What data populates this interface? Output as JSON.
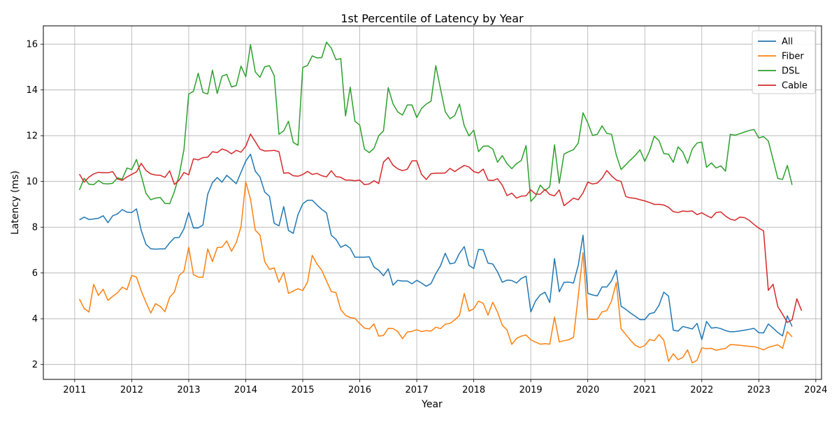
{
  "chart_data": {
    "type": "line",
    "title": "1st Percentile of Latency by Year",
    "xlabel": "Year",
    "ylabel": "Latency (ms)",
    "xlim": [
      2010.45,
      2024.1
    ],
    "ylim": [
      1.35,
      16.8
    ],
    "x_ticks": [
      2011,
      2012,
      2013,
      2014,
      2015,
      2016,
      2017,
      2018,
      2019,
      2020,
      2021,
      2022,
      2023,
      2024
    ],
    "x_tick_labels": [
      "2011",
      "2012",
      "2013",
      "2014",
      "2015",
      "2016",
      "2017",
      "2018",
      "2019",
      "2020",
      "2021",
      "2022",
      "2023",
      "2024"
    ],
    "y_ticks": [
      2,
      4,
      6,
      8,
      10,
      12,
      14,
      16
    ],
    "y_tick_labels": [
      "2",
      "4",
      "6",
      "8",
      "10",
      "12",
      "14",
      "16"
    ],
    "grid": true,
    "legend_position": "top-right",
    "x_start": "2011-02",
    "x_step_months": 1,
    "series": [
      {
        "name": "All",
        "color": "#1f77b4",
        "values": [
          8.32,
          8.44,
          8.34,
          8.36,
          8.39,
          8.5,
          8.2,
          8.5,
          8.58,
          8.77,
          8.66,
          8.64,
          8.8,
          7.86,
          7.25,
          7.06,
          7.04,
          7.05,
          7.05,
          7.32,
          7.54,
          7.55,
          7.93,
          8.64,
          7.97,
          7.97,
          8.1,
          9.44,
          9.95,
          10.17,
          9.97,
          10.27,
          10.09,
          9.9,
          10.4,
          10.89,
          11.19,
          10.45,
          10.2,
          9.54,
          9.35,
          8.17,
          8.06,
          8.9,
          7.86,
          7.73,
          8.55,
          9.02,
          9.18,
          9.18,
          8.97,
          8.78,
          8.63,
          7.65,
          7.47,
          7.12,
          7.23,
          7.08,
          6.69,
          6.69,
          6.69,
          6.71,
          6.26,
          6.12,
          5.88,
          6.18,
          5.47,
          5.68,
          5.65,
          5.65,
          5.53,
          5.68,
          5.56,
          5.42,
          5.54,
          5.97,
          6.32,
          6.86,
          6.4,
          6.44,
          6.86,
          7.15,
          6.33,
          6.2,
          7.03,
          7.01,
          6.43,
          6.39,
          6.05,
          5.59,
          5.69,
          5.67,
          5.56,
          5.76,
          5.86,
          4.3,
          4.77,
          5.04,
          5.16,
          4.71,
          6.63,
          5.18,
          5.59,
          5.6,
          5.56,
          6.34,
          7.65,
          5.11,
          5.04,
          5.0,
          5.39,
          5.39,
          5.66,
          6.12,
          4.55,
          4.41,
          4.25,
          4.11,
          3.96,
          3.96,
          4.22,
          4.27,
          4.59,
          5.16,
          4.99,
          3.5,
          3.46,
          3.66,
          3.61,
          3.55,
          3.8,
          3.09,
          3.88,
          3.59,
          3.62,
          3.57,
          3.48,
          3.43,
          3.44,
          3.47,
          3.5,
          3.54,
          3.58,
          3.39,
          3.38,
          3.77,
          3.59,
          3.4,
          3.25,
          4.13,
          3.66
        ]
      },
      {
        "name": "Fiber",
        "color": "#ff7f0e",
        "values": [
          4.86,
          4.45,
          4.29,
          5.5,
          5.02,
          5.29,
          4.8,
          4.98,
          5.13,
          5.38,
          5.27,
          5.89,
          5.82,
          5.22,
          4.71,
          4.25,
          4.66,
          4.54,
          4.31,
          4.94,
          5.17,
          5.89,
          6.08,
          7.12,
          5.93,
          5.82,
          5.81,
          7.05,
          6.5,
          7.11,
          7.13,
          7.4,
          6.95,
          7.33,
          8.02,
          9.98,
          9.23,
          7.87,
          7.66,
          6.5,
          6.16,
          6.22,
          5.59,
          6.03,
          5.11,
          5.21,
          5.31,
          5.23,
          5.6,
          6.77,
          6.39,
          6.12,
          5.65,
          5.19,
          5.14,
          4.4,
          4.15,
          4.05,
          4.02,
          3.79,
          3.59,
          3.55,
          3.77,
          3.24,
          3.27,
          3.58,
          3.57,
          3.44,
          3.13,
          3.42,
          3.45,
          3.52,
          3.44,
          3.48,
          3.46,
          3.63,
          3.57,
          3.76,
          3.8,
          3.95,
          4.15,
          5.1,
          4.33,
          4.44,
          4.77,
          4.67,
          4.16,
          4.72,
          4.29,
          3.72,
          3.51,
          2.88,
          3.14,
          3.24,
          3.29,
          3.08,
          2.98,
          2.89,
          2.91,
          2.89,
          4.07,
          2.99,
          3.04,
          3.08,
          3.19,
          5.0,
          6.89,
          3.98,
          3.97,
          3.98,
          4.3,
          4.35,
          4.78,
          5.59,
          3.56,
          3.31,
          3.06,
          2.84,
          2.74,
          2.83,
          3.09,
          3.04,
          3.31,
          3.06,
          2.14,
          2.47,
          2.21,
          2.31,
          2.64,
          2.07,
          2.19,
          2.73,
          2.69,
          2.71,
          2.62,
          2.67,
          2.7,
          2.87,
          2.86,
          2.84,
          2.82,
          2.79,
          2.78,
          2.72,
          2.64,
          2.75,
          2.81,
          2.86,
          2.71,
          3.44,
          3.21
        ]
      },
      {
        "name": "DSL",
        "color": "#2ca02c",
        "values": [
          9.63,
          10.14,
          9.88,
          9.86,
          10.04,
          9.91,
          9.89,
          9.92,
          10.16,
          10.1,
          10.59,
          10.52,
          10.96,
          10.26,
          9.48,
          9.2,
          9.27,
          9.3,
          9.04,
          9.03,
          9.56,
          10.29,
          11.39,
          13.82,
          13.94,
          14.73,
          13.89,
          13.82,
          14.86,
          13.84,
          14.6,
          14.68,
          14.13,
          14.19,
          15.04,
          14.57,
          15.98,
          14.79,
          14.55,
          15.01,
          15.06,
          14.62,
          12.06,
          12.21,
          12.63,
          11.71,
          11.58,
          14.98,
          15.07,
          15.49,
          15.4,
          15.41,
          16.09,
          15.83,
          15.32,
          15.37,
          12.86,
          14.12,
          12.63,
          12.46,
          11.41,
          11.26,
          11.44,
          12.0,
          12.21,
          14.1,
          13.39,
          13.04,
          12.9,
          13.34,
          13.34,
          12.79,
          13.19,
          13.38,
          13.51,
          15.06,
          14.04,
          13.05,
          12.74,
          12.88,
          13.38,
          12.43,
          11.99,
          12.24,
          11.3,
          11.54,
          11.55,
          11.42,
          10.84,
          11.13,
          10.78,
          10.56,
          10.78,
          10.92,
          11.57,
          9.13,
          9.35,
          9.84,
          9.6,
          9.77,
          11.6,
          9.92,
          11.2,
          11.3,
          11.39,
          11.68,
          13.0,
          12.56,
          12.01,
          12.06,
          12.43,
          12.1,
          12.06,
          11.15,
          10.52,
          10.73,
          10.94,
          11.14,
          11.38,
          10.88,
          11.33,
          11.98,
          11.78,
          11.22,
          11.19,
          10.84,
          11.51,
          11.29,
          10.79,
          11.42,
          11.68,
          11.72,
          10.62,
          10.81,
          10.59,
          10.68,
          10.45,
          12.06,
          12.02,
          12.09,
          12.16,
          12.23,
          12.27,
          11.9,
          11.96,
          11.77,
          10.96,
          10.13,
          10.09,
          10.7,
          9.85
        ]
      },
      {
        "name": "Cable",
        "color": "#d62728",
        "values": [
          10.32,
          9.97,
          10.19,
          10.33,
          10.4,
          10.38,
          10.38,
          10.43,
          10.11,
          10.05,
          10.2,
          10.31,
          10.42,
          10.79,
          10.48,
          10.33,
          10.28,
          10.27,
          10.18,
          10.46,
          9.87,
          10.06,
          10.39,
          10.29,
          10.99,
          10.94,
          11.04,
          11.06,
          11.3,
          11.26,
          11.42,
          11.35,
          11.21,
          11.36,
          11.28,
          11.54,
          12.07,
          11.74,
          11.41,
          11.33,
          11.34,
          11.36,
          11.3,
          10.36,
          10.38,
          10.25,
          10.23,
          10.3,
          10.44,
          10.31,
          10.35,
          10.25,
          10.2,
          10.47,
          10.21,
          10.18,
          10.06,
          10.06,
          10.03,
          10.06,
          9.86,
          9.89,
          10.03,
          9.91,
          10.85,
          11.05,
          10.71,
          10.55,
          10.47,
          10.53,
          10.9,
          10.9,
          10.31,
          10.09,
          10.34,
          10.36,
          10.36,
          10.37,
          10.57,
          10.43,
          10.57,
          10.7,
          10.63,
          10.43,
          10.37,
          10.54,
          10.06,
          10.04,
          10.12,
          9.84,
          9.38,
          9.49,
          9.27,
          9.36,
          9.37,
          9.63,
          9.45,
          9.44,
          9.65,
          9.43,
          9.37,
          9.63,
          8.94,
          9.1,
          9.27,
          9.2,
          9.5,
          9.97,
          9.89,
          9.93,
          10.14,
          10.48,
          10.24,
          10.06,
          10.0,
          9.34,
          9.28,
          9.26,
          9.2,
          9.15,
          9.08,
          9.0,
          9.0,
          8.97,
          8.87,
          8.68,
          8.64,
          8.71,
          8.69,
          8.71,
          8.55,
          8.63,
          8.51,
          8.41,
          8.64,
          8.67,
          8.49,
          8.35,
          8.3,
          8.44,
          8.42,
          8.3,
          8.12,
          7.96,
          7.84,
          5.24,
          5.51,
          4.53,
          4.2,
          3.84,
          3.95,
          4.87,
          4.35
        ]
      }
    ]
  }
}
